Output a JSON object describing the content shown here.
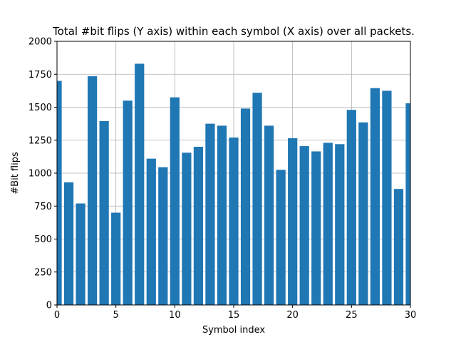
{
  "chart_data": {
    "type": "bar",
    "title": "Total #bit flips (Y axis) within each symbol (X axis) over all packets.",
    "xlabel": "Symbol index",
    "ylabel": "#Bit flips",
    "xlim": [
      0,
      30
    ],
    "ylim": [
      0,
      2000
    ],
    "xticks": [
      0,
      5,
      10,
      15,
      20,
      25,
      30
    ],
    "yticks": [
      0,
      250,
      500,
      750,
      1000,
      1250,
      1500,
      1750,
      2000
    ],
    "xtick_labels": [
      "0",
      "5",
      "10",
      "15",
      "20",
      "25",
      "30"
    ],
    "ytick_labels": [
      "0",
      "250",
      "500",
      "750",
      "1000",
      "1250",
      "1500",
      "1750",
      "2000"
    ],
    "grid": true,
    "bar_color": "#1f77b4",
    "bar_width": 0.8,
    "x": [
      0,
      1,
      2,
      3,
      4,
      5,
      6,
      7,
      8,
      9,
      10,
      11,
      12,
      13,
      14,
      15,
      16,
      17,
      18,
      19,
      20,
      21,
      22,
      23,
      24,
      25,
      26,
      27,
      28,
      29,
      30
    ],
    "values": [
      1700,
      930,
      770,
      1735,
      1395,
      700,
      1550,
      1830,
      1110,
      1045,
      1575,
      1155,
      1200,
      1375,
      1360,
      1270,
      1490,
      1610,
      1360,
      1025,
      1265,
      1205,
      1165,
      1230,
      1220,
      1480,
      1385,
      1645,
      1625,
      880,
      1530
    ]
  }
}
